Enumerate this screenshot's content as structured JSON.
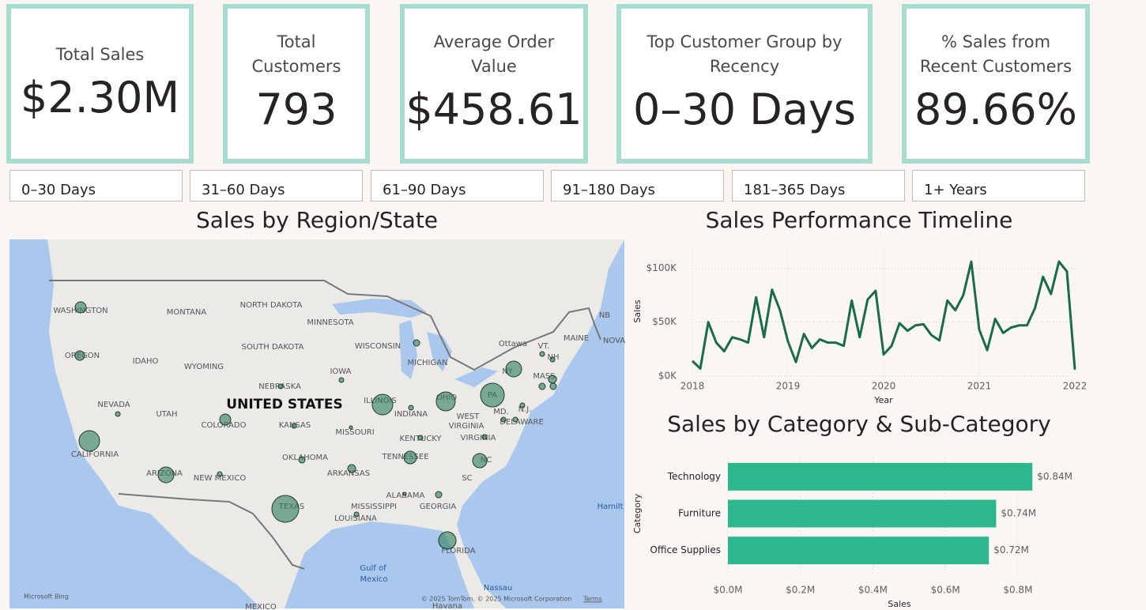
{
  "cards": [
    {
      "title": "Total Sales",
      "value": "$2.30M"
    },
    {
      "title": "Total Customers",
      "value": "793"
    },
    {
      "title": "Average Order Value",
      "value": "$458.61"
    },
    {
      "title": "Top Customer Group by Recency",
      "value": "0–30 Days"
    },
    {
      "title": "% Sales from Recent Customers",
      "value": "89.66%"
    }
  ],
  "slicers": [
    "0–30 Days",
    "31–60 Days",
    "61–90 Days",
    "91–180 Days",
    "181–365 Days",
    "1+ Years"
  ],
  "map": {
    "title": "Sales by Region/State",
    "labels": [
      "WASHINGTON",
      "MONTANA",
      "NORTH DAKOTA",
      "MINNESOTA",
      "OREGON",
      "IDAHO",
      "WYOMING",
      "SOUTH DAKOTA",
      "WISCONSIN",
      "MICHIGAN",
      "Ottawa",
      "MAINE",
      "NB",
      "NOVA",
      "VT.",
      "NH",
      "MASS.",
      "NY",
      "PA",
      "N.J.",
      "MD.",
      "DELAWARE",
      "IOWA",
      "NEBRASKA",
      "ILLINOIS",
      "INDIANA",
      "OHIO",
      "NEVADA",
      "UTAH",
      "COLORADO",
      "KANSAS",
      "MISSOURI",
      "WEST",
      "VIRGINIA",
      "VIRGINIA",
      "KENTUCKY",
      "CALIFORNIA",
      "UNITED STATES",
      "OKLAHOMA",
      "TENNESSEE",
      "NC",
      "ARIZONA",
      "NEW MEXICO",
      "ARKANSAS",
      "SC",
      "ALABAMA",
      "GEORGIA",
      "MISSISSIPPI",
      "LOUISIANA",
      "TEXAS",
      "FLORIDA",
      "Gulf of",
      "Mexico",
      "Nassau",
      "Hamilt",
      "MEXICO",
      "Havana",
      "Microsoft Bing",
      "© 2025 TomTom, © 2025 Microsoft Corporation",
      "Terms"
    ]
  },
  "chart_data": [
    {
      "type": "line",
      "title": "Sales Performance Timeline",
      "x_label": "Year",
      "y_label": "Sales",
      "color": "#1a6b4c",
      "x": [
        2018,
        2018.0833,
        2018.1667,
        2018.25,
        2018.3333,
        2018.4167,
        2018.5,
        2018.5833,
        2018.6667,
        2018.75,
        2018.8333,
        2018.9167,
        2019,
        2019.0833,
        2019.1667,
        2019.25,
        2019.3333,
        2019.4167,
        2019.5,
        2019.5833,
        2019.6667,
        2019.75,
        2019.8333,
        2019.9167,
        2020,
        2020.0833,
        2020.1667,
        2020.25,
        2020.3333,
        2020.4167,
        2020.5,
        2020.5833,
        2020.6667,
        2020.75,
        2020.8333,
        2020.9167,
        2021,
        2021.0833,
        2021.1667,
        2021.25,
        2021.3333,
        2021.4167,
        2021.5,
        2021.5833,
        2021.6667,
        2021.75,
        2021.8333,
        2021.9167,
        2022
      ],
      "values": [
        14000,
        7000,
        50000,
        31000,
        23000,
        36000,
        34000,
        31000,
        73000,
        36000,
        80000,
        61000,
        32000,
        13000,
        39000,
        26000,
        34000,
        31000,
        31000,
        28000,
        70000,
        36000,
        71000,
        79000,
        20000,
        28000,
        49000,
        42000,
        47000,
        48000,
        38000,
        33000,
        70000,
        61000,
        75000,
        106000,
        43000,
        24000,
        53000,
        40000,
        45000,
        47000,
        47000,
        63000,
        92000,
        76000,
        106000,
        97000,
        6000
      ],
      "xlim": [
        2018,
        2022
      ],
      "xticks": [
        2018,
        2019,
        2020,
        2021,
        2022
      ],
      "ylim": [
        0,
        120000
      ],
      "yticks": [
        {
          "value": 0,
          "label": "$0K"
        },
        {
          "value": 50000,
          "label": "$50K"
        },
        {
          "value": 100000,
          "label": "$100K"
        }
      ],
      "grid": true
    },
    {
      "type": "bar",
      "orientation": "horizontal",
      "title": "Sales by Category & Sub-Category",
      "x_label": "Sales",
      "y_label": "Category",
      "color": "#2db78c",
      "categories": [
        "Technology",
        "Furniture",
        "Office Supplies"
      ],
      "values": [
        840000,
        740000,
        720000
      ],
      "value_labels": [
        "$0.84M",
        "$0.74M",
        "$0.72M"
      ],
      "xlim": [
        0,
        870000
      ],
      "xticks": [
        {
          "value": 0,
          "label": "$0.0M"
        },
        {
          "value": 200000,
          "label": "$0.2M"
        },
        {
          "value": 400000,
          "label": "$0.4M"
        },
        {
          "value": 600000,
          "label": "$0.6M"
        },
        {
          "value": 800000,
          "label": "$0.8M"
        }
      ],
      "grid": true
    }
  ]
}
